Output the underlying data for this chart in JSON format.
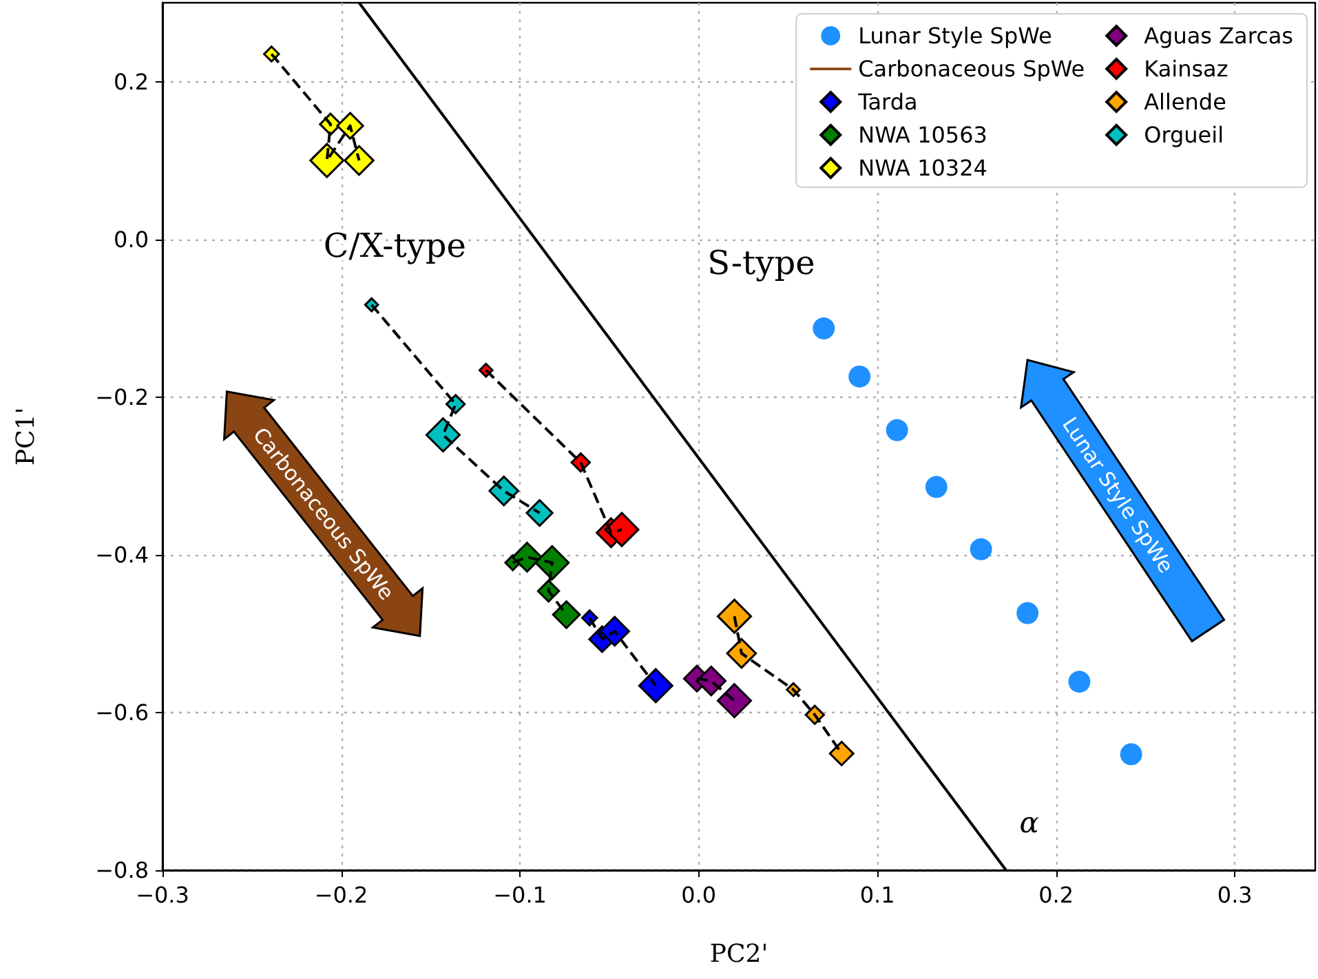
{
  "chart_data": {
    "type": "scatter",
    "xlabel": "PC2'",
    "ylabel": "PC1'",
    "xlim": [
      -0.3,
      0.345
    ],
    "ylim": [
      -0.8,
      0.3
    ],
    "xticks": [
      {
        "value": -0.3,
        "label": "−0.3"
      },
      {
        "value": -0.2,
        "label": "−0.2"
      },
      {
        "value": -0.1,
        "label": "−0.1"
      },
      {
        "value": 0,
        "label": "0.0"
      },
      0.1,
      0.2,
      0.3
    ],
    "yticks": [
      {
        "value": -0.8,
        "label": "−0.8"
      },
      {
        "value": -0.6,
        "label": "−0.6"
      },
      {
        "value": -0.4,
        "label": "−0.4"
      },
      {
        "value": -0.2,
        "label": "−0.2"
      },
      {
        "value": 0,
        "label": "0.0"
      },
      0.2
    ],
    "grid": true,
    "legend": "top right",
    "annotations": [
      "C/X-type",
      "S-type",
      "α",
      "Carbonaceous SpWe",
      "Lunar Style SpWe"
    ],
    "series": [
      {
        "name": "Lunar Style SpWe",
        "marker": "circle",
        "color": "#1e90ff",
        "x": [
          0.07,
          0.09,
          0.111,
          0.133,
          0.158,
          0.184,
          0.213,
          0.242
        ],
        "values": [
          -0.113,
          -0.174,
          -0.242,
          -0.314,
          -0.393,
          -0.474,
          -0.561,
          -0.653
        ]
      },
      {
        "name": "Carbonaceous SpWe",
        "type": "line",
        "marker": "none",
        "line_style": "solid",
        "color": "#8b4513"
      },
      {
        "name": "Tarda",
        "type": "bubble",
        "marker": "diamond",
        "color": "#0000ff",
        "x": [
          -0.061,
          -0.054,
          -0.047,
          -0.024
        ],
        "values": [
          -0.48,
          -0.507,
          -0.497,
          -0.566
        ],
        "sizes": [
          0.2,
          0.6,
          0.75,
          1
        ]
      },
      {
        "name": "NWA 10563",
        "type": "bubble",
        "marker": "diamond",
        "color": "#008000",
        "x": [
          -0.104,
          -0.096,
          -0.082,
          -0.084,
          -0.074
        ],
        "values": [
          -0.41,
          -0.403,
          -0.41,
          -0.446,
          -0.476
        ],
        "sizes": [
          0.2,
          0.75,
          1,
          0.4,
          0.65
        ]
      },
      {
        "name": "NWA 10324",
        "type": "bubble",
        "marker": "diamond",
        "color": "#ffff00",
        "x": [
          -0.239,
          -0.206,
          -0.208,
          -0.195,
          -0.19
        ],
        "values": [
          0.235,
          0.146,
          0.1,
          0.144,
          0.1
        ],
        "sizes": [
          0.2,
          0.4,
          1,
          0.6,
          0.75
        ]
      },
      {
        "name": "Aguas Zarcas",
        "type": "bubble",
        "marker": "diamond",
        "color": "#800080",
        "x": [
          -0.001,
          0.007,
          0.02
        ],
        "values": [
          -0.557,
          -0.56,
          -0.585
        ],
        "sizes": [
          0.6,
          0.75,
          1
        ]
      },
      {
        "name": "Kainsaz",
        "type": "bubble",
        "marker": "diamond",
        "color": "#ff0000",
        "x": [
          -0.119,
          -0.066,
          -0.049,
          -0.043
        ],
        "values": [
          -0.166,
          -0.283,
          -0.372,
          -0.368
        ],
        "sizes": [
          0.15,
          0.3,
          0.75,
          1
        ]
      },
      {
        "name": "Allende",
        "type": "bubble",
        "marker": "diamond",
        "color": "#ffa500",
        "x": [
          0.02,
          0.024,
          0.053,
          0.065,
          0.08
        ],
        "values": [
          -0.478,
          -0.525,
          -0.571,
          -0.603,
          -0.652
        ],
        "sizes": [
          1,
          0.75,
          0.15,
          0.3,
          0.5
        ]
      },
      {
        "name": "Orgueil",
        "type": "bubble",
        "marker": "diamond",
        "color": "#00bfbf",
        "x": [
          -0.183,
          -0.136,
          -0.143,
          -0.109,
          -0.089
        ],
        "values": [
          -0.083,
          -0.209,
          -0.248,
          -0.319,
          -0.347
        ],
        "sizes": [
          0.15,
          0.3,
          1,
          0.75,
          0.6
        ]
      },
      {
        "type": "line",
        "marker": "none",
        "line_style": "dashed",
        "color": "#000000",
        "x": [
          -0.061,
          -0.054,
          -0.047,
          -0.024
        ],
        "values": [
          -0.48,
          -0.507,
          -0.497,
          -0.566
        ]
      },
      {
        "type": "line",
        "marker": "none",
        "line_style": "dashed",
        "color": "#000000",
        "x": [
          -0.104,
          -0.096,
          -0.082,
          -0.084,
          -0.074
        ],
        "values": [
          -0.41,
          -0.403,
          -0.41,
          -0.446,
          -0.476
        ]
      },
      {
        "type": "line",
        "marker": "none",
        "line_style": "dashed",
        "color": "#000000",
        "x": [
          -0.239,
          -0.206,
          -0.208,
          -0.195,
          -0.19
        ],
        "values": [
          0.235,
          0.146,
          0.1,
          0.144,
          0.1
        ]
      },
      {
        "type": "line",
        "marker": "none",
        "line_style": "dashed",
        "color": "#000000",
        "x": [
          -0.001,
          0.007,
          0.02
        ],
        "values": [
          -0.557,
          -0.56,
          -0.585
        ]
      },
      {
        "type": "line",
        "marker": "none",
        "line_style": "dashed",
        "color": "#000000",
        "x": [
          -0.119,
          -0.066,
          -0.049,
          -0.043
        ],
        "values": [
          -0.166,
          -0.283,
          -0.372,
          -0.368
        ]
      },
      {
        "type": "line",
        "marker": "none",
        "line_style": "dashed",
        "color": "#000000",
        "x": [
          0.02,
          0.024,
          0.053,
          0.065,
          0.08
        ],
        "values": [
          -0.478,
          -0.525,
          -0.571,
          -0.603,
          -0.652
        ]
      },
      {
        "type": "line",
        "marker": "none",
        "line_style": "dashed",
        "color": "#000000",
        "x": [
          -0.183,
          -0.136,
          -0.143,
          -0.109,
          -0.089
        ],
        "values": [
          -0.083,
          -0.209,
          -0.248,
          -0.319,
          -0.347
        ]
      },
      {
        "type": "line",
        "marker": "none",
        "line_style": "solid",
        "color": "#000000",
        "x": [
          -0.19,
          0.172
        ],
        "values": [
          0.3,
          -0.8
        ]
      }
    ]
  }
}
